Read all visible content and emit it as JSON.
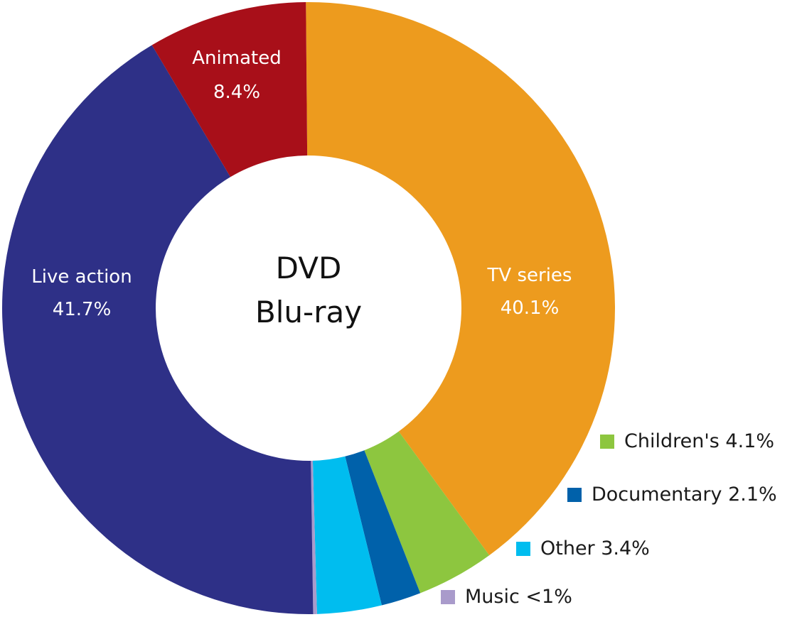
{
  "chart_data": {
    "type": "pie",
    "subtype": "donut",
    "title": "DVD Blu-ray",
    "center_label": [
      "DVD",
      "Blu-ray"
    ],
    "start_angle_deg": -0.5,
    "direction": "clockwise",
    "slices": [
      {
        "name": "TV series",
        "value": 40.1,
        "label": "40.1%",
        "color": "#ED9B1E",
        "label_inside": true
      },
      {
        "name": "Children's",
        "value": 4.1,
        "label": "4.1%",
        "color": "#8DC63F",
        "label_inside": false
      },
      {
        "name": "Documentary",
        "value": 2.1,
        "label": "2.1%",
        "color": "#0061AA",
        "label_inside": false
      },
      {
        "name": "Other",
        "value": 3.4,
        "label": "3.4%",
        "color": "#00BDEF",
        "label_inside": false
      },
      {
        "name": "Music",
        "value": 0.2,
        "label": "<1%",
        "color": "#A99BCB",
        "label_inside": false
      },
      {
        "name": "Live action",
        "value": 41.7,
        "label": "41.7%",
        "color": "#2E3087",
        "label_inside": true
      },
      {
        "name": "Animated",
        "value": 8.4,
        "label": "8.4%",
        "color": "#A80F19",
        "label_inside": true
      }
    ],
    "legend": [
      {
        "name": "Children's",
        "text": "Children's 4.1%",
        "color": "#8DC63F"
      },
      {
        "name": "Documentary",
        "text": "Documentary 2.1%",
        "color": "#0061AA"
      },
      {
        "name": "Other",
        "text": "Other 3.4%",
        "color": "#00BDEF"
      },
      {
        "name": "Music",
        "text": "Music <1%",
        "color": "#A99BCB"
      }
    ]
  },
  "inside_labels": {
    "tv_series": {
      "name": "TV series",
      "value": "40.1%"
    },
    "live_action": {
      "name": "Live action",
      "value": "41.7%"
    },
    "animated": {
      "name": "Animated",
      "value": "8.4%"
    }
  },
  "center": {
    "line1": "DVD",
    "line2": "Blu-ray"
  },
  "legend": {
    "childrens": "Children's 4.1%",
    "documentary": "Documentary 2.1%",
    "other": "Other 3.4%",
    "music": "Music <1%"
  }
}
